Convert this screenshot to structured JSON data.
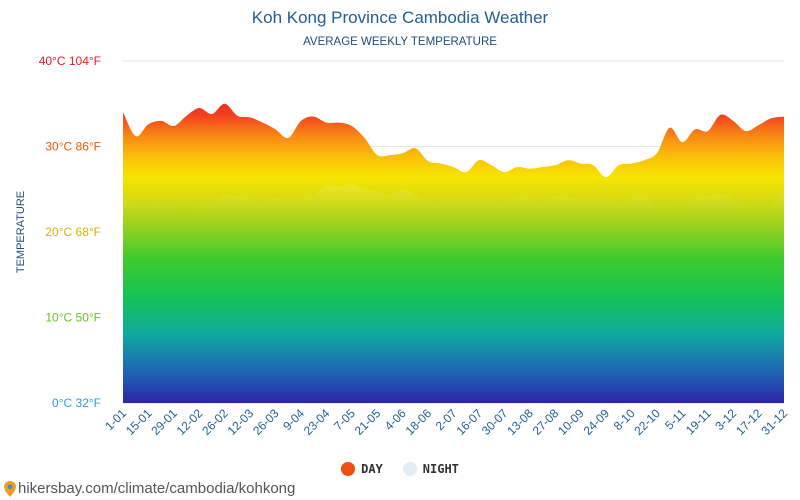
{
  "title": "Koh Kong Province Cambodia Weather",
  "subtitle": "AVERAGE WEEKLY TEMPERATURE",
  "source_url": "hikersbay.com/climate/cambodia/kohkong",
  "legend": [
    {
      "label": "DAY",
      "color": "#f04e14"
    },
    {
      "label": "NIGHT",
      "color": "#e3ecf2"
    }
  ],
  "chart_data": {
    "type": "area",
    "title": "Koh Kong Province Cambodia Weather",
    "subtitle": "AVERAGE WEEKLY TEMPERATURE",
    "ylabel": "TEMPERATURE",
    "ylim": [
      0,
      40
    ],
    "y_ticks": [
      {
        "value": 0,
        "label": "0°C 32°F",
        "color": "#2a9fd6"
      },
      {
        "value": 10,
        "label": "10°C 50°F",
        "color": "#6dc024"
      },
      {
        "value": 20,
        "label": "20°C 68°F",
        "color": "#e0b000"
      },
      {
        "value": 30,
        "label": "30°C 86°F",
        "color": "#f05a00"
      },
      {
        "value": 40,
        "label": "40°C 104°F",
        "color": "#e81c24"
      }
    ],
    "x_tick_labels": [
      "1-01",
      "15-01",
      "29-01",
      "12-02",
      "26-02",
      "12-03",
      "26-03",
      "9-04",
      "23-04",
      "7-05",
      "21-05",
      "4-06",
      "18-06",
      "2-07",
      "16-07",
      "30-07",
      "13-08",
      "27-08",
      "10-09",
      "24-09",
      "8-10",
      "22-10",
      "5-11",
      "19-11",
      "3-12",
      "17-12",
      "31-12"
    ],
    "grid": true,
    "legend_position": "bottom-center",
    "series": [
      {
        "name": "DAY",
        "values": [
          34,
          31.2,
          32.6,
          33,
          32.4,
          33.6,
          34.5,
          33.8,
          35,
          33.6,
          33.4,
          32.8,
          32,
          31,
          33,
          33.5,
          32.8,
          32.8,
          32.4,
          31,
          29,
          29,
          29.2,
          29.8,
          28.3,
          28,
          27.6,
          27,
          28.4,
          27.8,
          27,
          27.6,
          27.4,
          27.6,
          27.8,
          28.4,
          28,
          27.8,
          26.4,
          27.8,
          28,
          28.4,
          29.2,
          32.2,
          30.5,
          32,
          31.8,
          33.7,
          33,
          31.8,
          32.5,
          33.3,
          33.5
        ]
      },
      {
        "name": "NIGHT",
        "values": [
          24,
          23.2,
          23.3,
          23.4,
          23,
          22,
          23.2,
          23.5,
          24.3,
          24.2,
          24,
          23.5,
          24,
          23.5,
          24,
          24.2,
          25.5,
          25.3,
          25.6,
          25,
          24.7,
          24.3,
          25,
          24.3,
          23.6,
          23.6,
          23.9,
          23.6,
          23.9,
          23.8,
          23.5,
          24,
          24,
          23.5,
          24.2,
          24,
          23.9,
          23.7,
          23.7,
          23.5,
          24,
          24.1,
          23.1,
          23,
          22.7,
          24,
          24.2,
          24.5,
          23.9,
          23,
          22.8,
          23,
          25
        ]
      }
    ]
  }
}
